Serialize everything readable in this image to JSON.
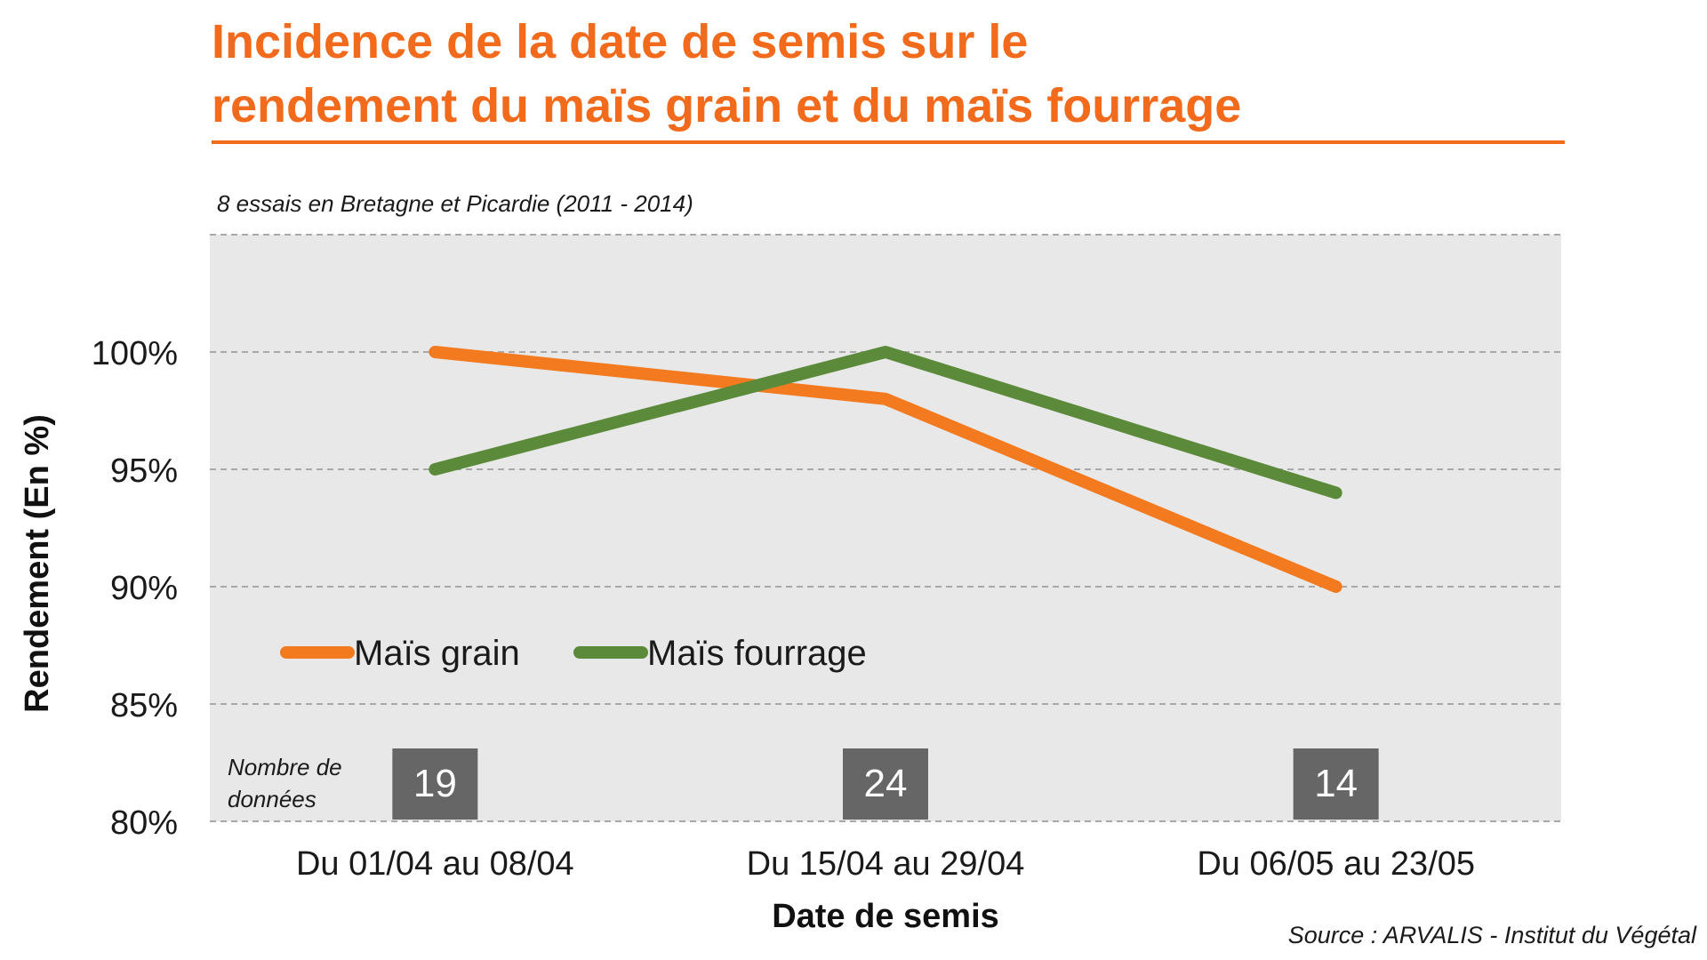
{
  "header": {
    "title_line1": "Incidence de la date de semis sur le",
    "title_line2": "rendement du maïs grain et du maïs fourrage"
  },
  "subtitle": "8 essais en Bretagne et Picardie (2011 - 2014)",
  "source": "Source : ARVALIS - Institut du Végétal",
  "colors": {
    "accent": "#f26a1b",
    "mais_grain": "#f47a20",
    "mais_fourrage": "#5b8a3a",
    "plot_background": "#e8e8e8",
    "count_box": "#666666"
  },
  "chart_data": {
    "type": "line",
    "title": "Incidence de la date de semis sur le rendement du maïs grain et du maïs fourrage",
    "subtitle": "8 essais en Bretagne et Picardie (2011 - 2014)",
    "xlabel": "Date de semis",
    "ylabel": "Rendement (En %)",
    "categories": [
      "Du 01/04 au 08/04",
      "Du 15/04 au 29/04",
      "Du 06/05 au 23/05"
    ],
    "series": [
      {
        "name": "Maïs grain",
        "values": [
          100,
          98,
          90
        ]
      },
      {
        "name": "Maïs fourrage",
        "values": [
          95,
          100,
          94
        ]
      }
    ],
    "ylim": [
      80,
      105
    ],
    "yticks": [
      80,
      85,
      90,
      95,
      100
    ],
    "ytick_labels": [
      "80%",
      "85%",
      "90%",
      "95%",
      "100%"
    ],
    "grid": true,
    "legend_position": "lower-left",
    "count_label": "Nombre de données",
    "count_label_lines": [
      "Nombre de",
      "données"
    ],
    "counts": [
      "19",
      "24",
      "14"
    ]
  }
}
